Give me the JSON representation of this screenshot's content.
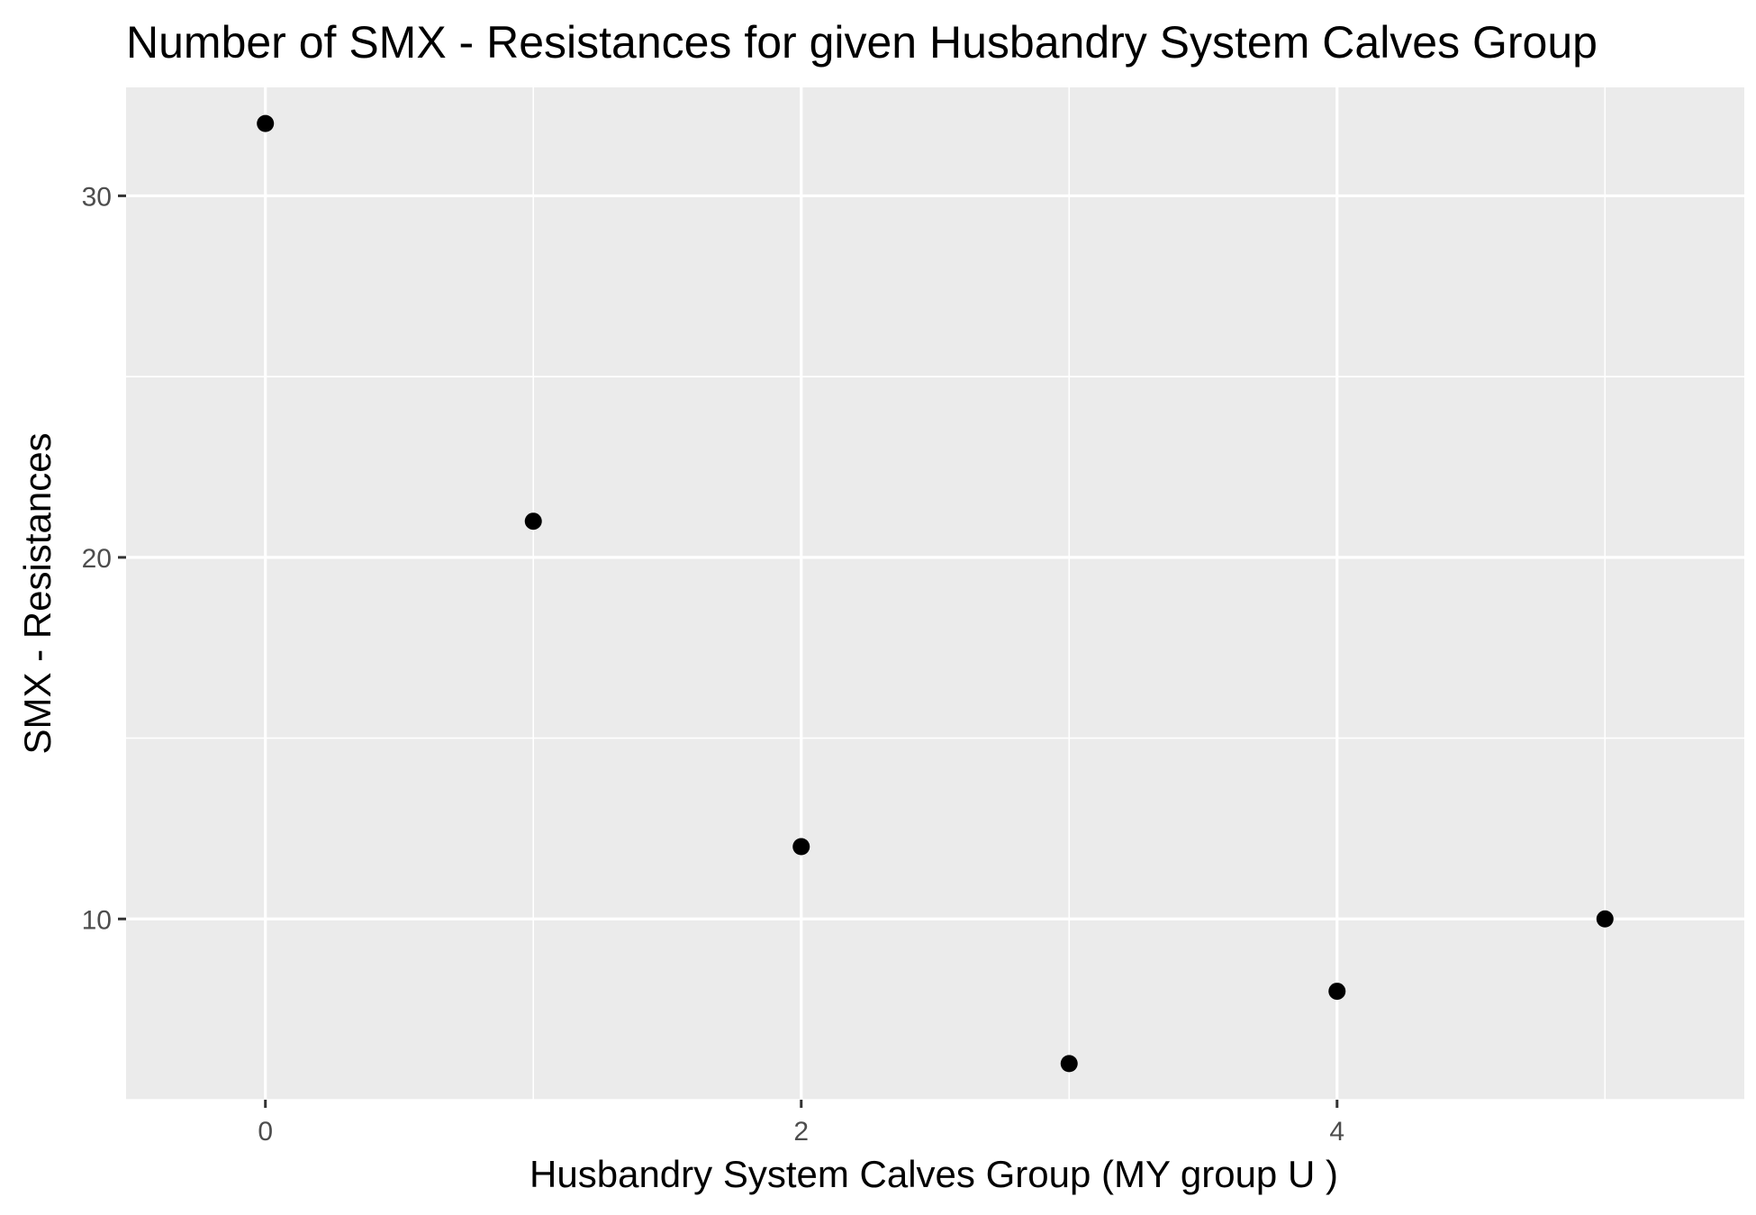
{
  "chart_data": {
    "type": "scatter",
    "title": "Number of SMX - Resistances for given Husbandry System Calves Group",
    "xlabel": "Husbandry System Calves Group     (MY group U )",
    "ylabel": "SMX - Resistances",
    "xlim": [
      -0.52,
      5.52
    ],
    "ylim": [
      5.0,
      33.0
    ],
    "xticks": [
      0,
      2,
      4
    ],
    "yticks": [
      10,
      20,
      30
    ],
    "x_minor_gridlines": [
      1,
      3,
      5
    ],
    "y_minor_gridlines": [
      5,
      15,
      25
    ],
    "grid": true,
    "legend": "none",
    "colors": {
      "panel_background": "#ebebeb",
      "gridline": "#ffffff",
      "point": "#000000",
      "tick_text": "#4d4d4d"
    },
    "series": [
      {
        "x": [
          0,
          1,
          2,
          3,
          4,
          5
        ],
        "y": [
          32,
          21,
          12,
          6,
          8,
          10
        ]
      }
    ]
  }
}
